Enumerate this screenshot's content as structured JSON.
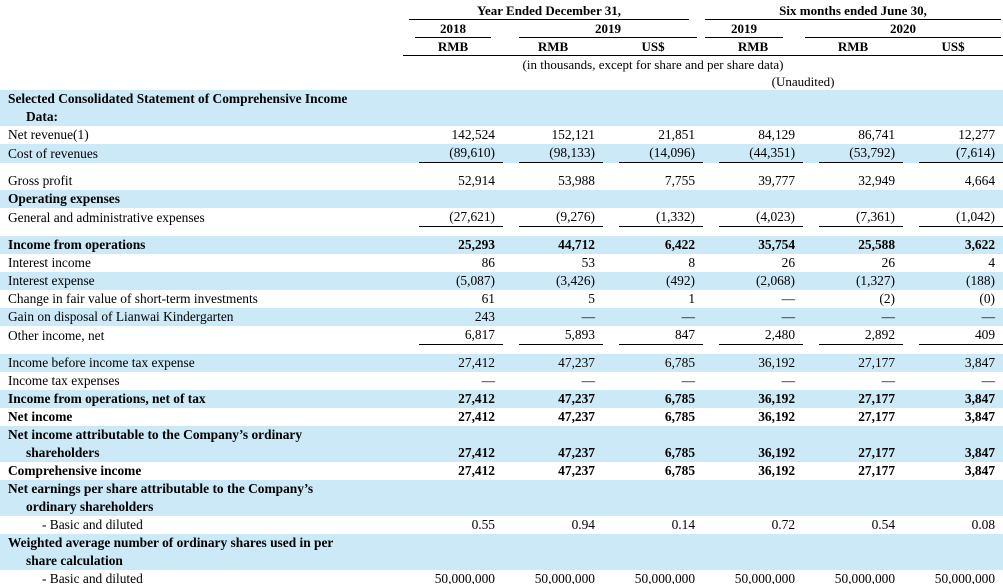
{
  "colors": {
    "row_highlight": "#cce9f8",
    "text": "#000000",
    "rule": "#000000"
  },
  "header": {
    "group1": {
      "label": "Year Ended December 31,",
      "year1": "2018",
      "year2": "2019"
    },
    "group2": {
      "label": "Six months ended June 30,",
      "year1": "2019",
      "year2": "2020"
    },
    "currencies": [
      "RMB",
      "RMB",
      "US$",
      "RMB",
      "RMB",
      "US$"
    ]
  },
  "notes": {
    "thousands": "(in thousands, except for share and per share data)",
    "unaudited": "(Unaudited)"
  },
  "chart_data": {
    "type": "table",
    "title": "Selected Consolidated Statement of Comprehensive Income Data",
    "columns": [
      "2018 RMB",
      "2019 RMB",
      "2019 US$",
      "6M 2019 RMB",
      "6M 2020 RMB",
      "6M 2020 US$"
    ]
  },
  "table": {
    "rows": [
      {
        "lines": [
          "Selected Consolidated Statement of Comprehensive Income",
          "Data:"
        ],
        "indents": [
          0,
          1
        ],
        "values": null,
        "bold": true,
        "shaded": true
      },
      {
        "lines": [
          "Net revenue(1)"
        ],
        "values": [
          "142,524",
          "152,121",
          "21,851",
          "84,129",
          "86,741",
          "12,277"
        ]
      },
      {
        "lines": [
          "Cost of revenues"
        ],
        "values": [
          "(89,610)",
          "(98,133)",
          "(14,096)",
          "(44,351)",
          "(53,792)",
          "(7,614)"
        ],
        "shaded": true,
        "rule": true
      },
      {
        "spacer": true
      },
      {
        "lines": [
          "Gross profit"
        ],
        "values": [
          "52,914",
          "53,988",
          "7,755",
          "39,777",
          "32,949",
          "4,664"
        ]
      },
      {
        "lines": [
          "Operating expenses"
        ],
        "values": null,
        "bold": true,
        "shaded": true
      },
      {
        "lines": [
          "General and administrative expenses"
        ],
        "values": [
          "(27,621)",
          "(9,276)",
          "(1,332)",
          "(4,023)",
          "(7,361)",
          "(1,042)"
        ],
        "rule": true
      },
      {
        "spacer": true
      },
      {
        "lines": [
          "Income from operations"
        ],
        "values": [
          "25,293",
          "44,712",
          "6,422",
          "35,754",
          "25,588",
          "3,622"
        ],
        "bold": true,
        "shaded": true
      },
      {
        "lines": [
          "Interest income"
        ],
        "values": [
          "86",
          "53",
          "8",
          "26",
          "26",
          "4"
        ]
      },
      {
        "lines": [
          "Interest expense"
        ],
        "values": [
          "(5,087)",
          "(3,426)",
          "(492)",
          "(2,068)",
          "(1,327)",
          "(188)"
        ],
        "shaded": true
      },
      {
        "lines": [
          "Change in fair value of short-term investments"
        ],
        "values": [
          "61",
          "5",
          "1",
          "—",
          "(2)",
          "(0)"
        ]
      },
      {
        "lines": [
          "Gain on disposal of Lianwai Kindergarten"
        ],
        "values": [
          "243",
          "—",
          "—",
          "—",
          "—",
          "—"
        ],
        "shaded": true
      },
      {
        "lines": [
          "Other income, net"
        ],
        "values": [
          "6,817",
          "5,893",
          "847",
          "2,480",
          "2,892",
          "409"
        ],
        "rule": true
      },
      {
        "spacer": true
      },
      {
        "lines": [
          "Income before income tax expense"
        ],
        "values": [
          "27,412",
          "47,237",
          "6,785",
          "36,192",
          "27,177",
          "3,847"
        ],
        "shaded": true
      },
      {
        "lines": [
          "Income tax expenses"
        ],
        "values": [
          "—",
          "—",
          "—",
          "—",
          "—",
          "—"
        ]
      },
      {
        "lines": [
          "Income from operations, net of tax"
        ],
        "values": [
          "27,412",
          "47,237",
          "6,785",
          "36,192",
          "27,177",
          "3,847"
        ],
        "bold": true,
        "shaded": true
      },
      {
        "lines": [
          "Net income"
        ],
        "values": [
          "27,412",
          "47,237",
          "6,785",
          "36,192",
          "27,177",
          "3,847"
        ],
        "bold": true
      },
      {
        "lines": [
          "Net income attributable to the Company’s ordinary",
          "shareholders"
        ],
        "indents": [
          0,
          1
        ],
        "values": [
          "27,412",
          "47,237",
          "6,785",
          "36,192",
          "27,177",
          "3,847"
        ],
        "bold": true,
        "shaded": true
      },
      {
        "lines": [
          "Comprehensive income"
        ],
        "values": [
          "27,412",
          "47,237",
          "6,785",
          "36,192",
          "27,177",
          "3,847"
        ],
        "bold": true
      },
      {
        "lines": [
          "Net earnings per share attributable to the Company’s",
          "ordinary shareholders"
        ],
        "indents": [
          0,
          1
        ],
        "values": null,
        "bold": true,
        "shaded": true
      },
      {
        "lines": [
          "- Basic and diluted"
        ],
        "indents": [
          2
        ],
        "values": [
          "0.55",
          "0.94",
          "0.14",
          "0.72",
          "0.54",
          "0.08"
        ]
      },
      {
        "lines": [
          "Weighted average number of ordinary shares used in per",
          "share calculation"
        ],
        "indents": [
          0,
          1
        ],
        "values": null,
        "bold": true,
        "shaded": true
      },
      {
        "lines": [
          "- Basic and diluted"
        ],
        "indents": [
          2
        ],
        "values": [
          "50,000,000",
          "50,000,000",
          "50,000,000",
          "50,000,000",
          "50,000,000",
          "50,000,000"
        ]
      }
    ]
  }
}
